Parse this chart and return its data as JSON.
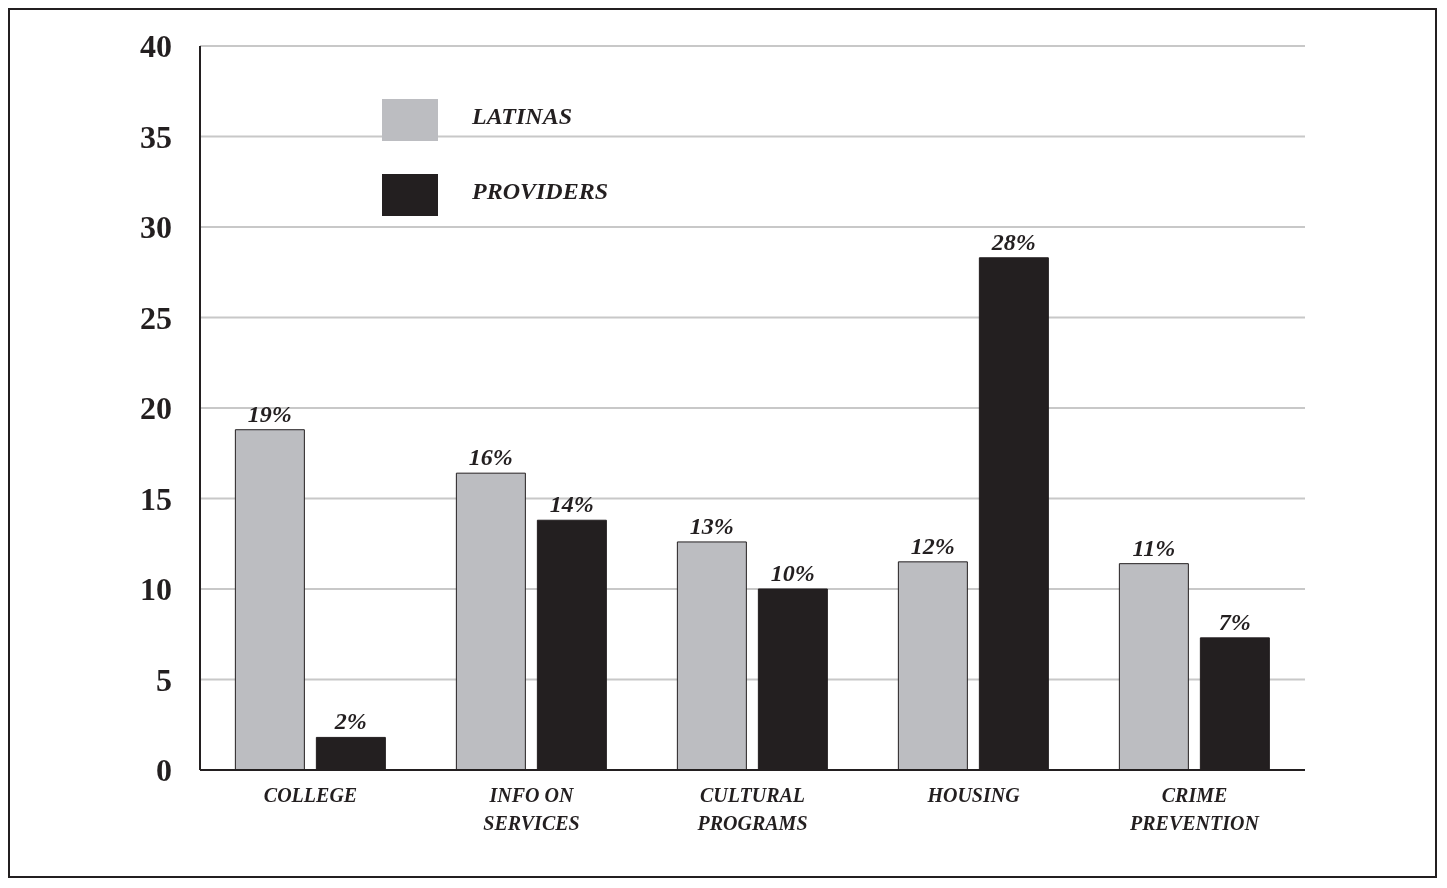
{
  "chart_data": {
    "type": "bar",
    "categories": [
      "COLLEGE",
      "INFO ON SERVICES",
      "CULTURAL PROGRAMS",
      "HOUSING",
      "CRIME PREVENTION"
    ],
    "series": [
      {
        "name": "LATINAS",
        "color": "#bcbdc1",
        "values": [
          18.8,
          16.4,
          12.6,
          11.5,
          11.4
        ],
        "value_labels": [
          "19%",
          "16%",
          "13%",
          "12%",
          "11%"
        ]
      },
      {
        "name": "PROVIDERS",
        "color": "#231f20",
        "values": [
          1.8,
          13.8,
          10.0,
          28.3,
          7.3
        ],
        "value_labels": [
          "2%",
          "14%",
          "10%",
          "28%",
          "7%"
        ]
      }
    ],
    "ylim": [
      0,
      40
    ],
    "yticks": [
      0,
      5,
      10,
      15,
      20,
      25,
      30,
      35,
      40
    ],
    "grid": "y",
    "legend": "top left"
  }
}
